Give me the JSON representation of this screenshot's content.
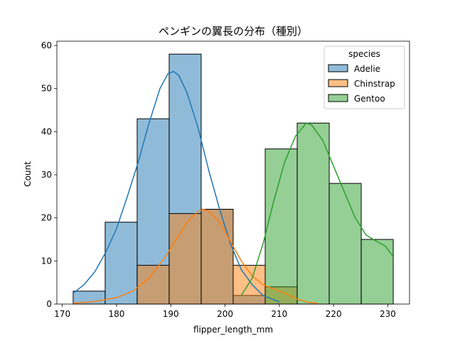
{
  "chart_data": {
    "type": "histogram",
    "title": "ペンギンの翼長の分布（種別）",
    "xlabel": "flipper_length_mm",
    "ylabel": "Count",
    "xlim": [
      169,
      234
    ],
    "ylim": [
      0,
      61
    ],
    "xticks": [
      170,
      180,
      190,
      200,
      210,
      220,
      230
    ],
    "yticks": [
      0,
      10,
      20,
      30,
      40,
      50,
      60
    ],
    "bin_edges": [
      172.0,
      177.9,
      183.8,
      189.7,
      195.6,
      201.5,
      207.4,
      213.3,
      219.2,
      225.1,
      231.0
    ],
    "legend": {
      "title": "species",
      "position": "upper right"
    },
    "series": [
      {
        "name": "Adelie",
        "color": "#1f77b4",
        "counts": [
          3,
          19,
          43,
          58,
          22,
          2,
          0,
          0,
          0,
          0
        ],
        "kde": [
          [
            172,
            2.5
          ],
          [
            174,
            4.5
          ],
          [
            176,
            7.5
          ],
          [
            178,
            12
          ],
          [
            180,
            17.5
          ],
          [
            182,
            25
          ],
          [
            184,
            33
          ],
          [
            186,
            42
          ],
          [
            188,
            50
          ],
          [
            189.5,
            53.5
          ],
          [
            190.5,
            54
          ],
          [
            191.5,
            53
          ],
          [
            193,
            49
          ],
          [
            195,
            41
          ],
          [
            197,
            31
          ],
          [
            199,
            22
          ],
          [
            201,
            14
          ],
          [
            203,
            8
          ],
          [
            205,
            4.5
          ],
          [
            207,
            2
          ],
          [
            209,
            1
          ],
          [
            210,
            0.5
          ]
        ]
      },
      {
        "name": "Chinstrap",
        "color": "#ff7f0e",
        "counts": [
          0,
          0,
          9,
          21,
          22,
          9,
          4,
          0,
          0,
          0
        ],
        "kde": [
          [
            172,
            0.2
          ],
          [
            176,
            0.6
          ],
          [
            180,
            1.5
          ],
          [
            183,
            3
          ],
          [
            186,
            6
          ],
          [
            189,
            11
          ],
          [
            191,
            15
          ],
          [
            193,
            19
          ],
          [
            195,
            21.5
          ],
          [
            196,
            22
          ],
          [
            197,
            21.5
          ],
          [
            199,
            19
          ],
          [
            201,
            14.5
          ],
          [
            203,
            10
          ],
          [
            205,
            6.5
          ],
          [
            207,
            4.5
          ],
          [
            209,
            3.5
          ],
          [
            211,
            2.5
          ],
          [
            213,
            1.3
          ],
          [
            215,
            0.5
          ],
          [
            217,
            0.2
          ]
        ]
      },
      {
        "name": "Gentoo",
        "color": "#2ca02c",
        "counts": [
          0,
          0,
          0,
          0,
          0,
          0,
          36,
          42,
          28,
          15
        ],
        "kde": [
          [
            203,
            2
          ],
          [
            205,
            6
          ],
          [
            207,
            14
          ],
          [
            209,
            24
          ],
          [
            211,
            33
          ],
          [
            213,
            39
          ],
          [
            215,
            42
          ],
          [
            216,
            41.5
          ],
          [
            218,
            38
          ],
          [
            220,
            32
          ],
          [
            222,
            26
          ],
          [
            224,
            20
          ],
          [
            226,
            16
          ],
          [
            228,
            14.5
          ],
          [
            229.5,
            13.5
          ],
          [
            231,
            11
          ]
        ]
      }
    ]
  }
}
